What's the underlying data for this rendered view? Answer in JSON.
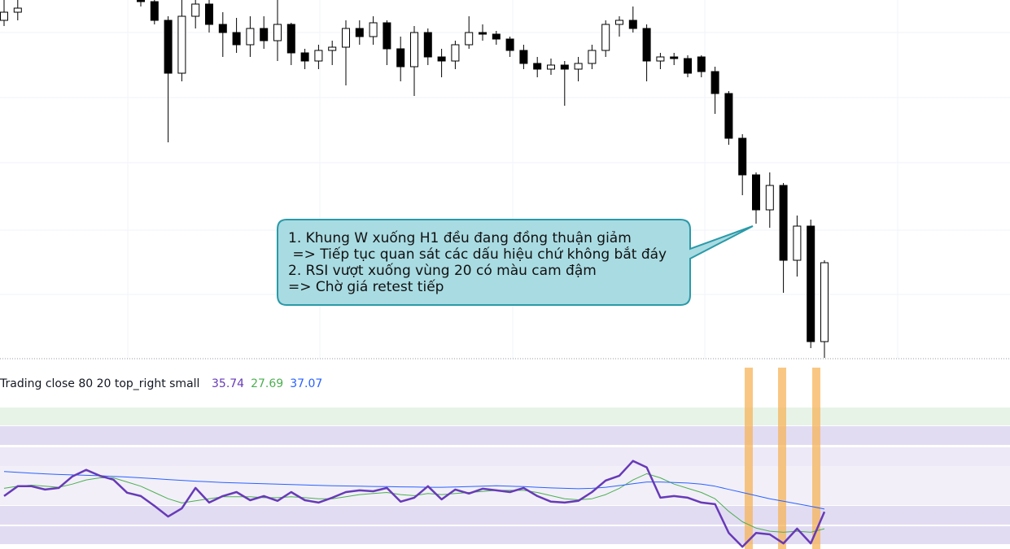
{
  "chart_data": [
    {
      "type": "candlestick",
      "ylim": [
        0,
        440
      ],
      "up_color": "#ffffff",
      "down_color": "#000000",
      "open": [
        415,
        425,
        450,
        460,
        455,
        465,
        470,
        460,
        455,
        462,
        445,
        438,
        415,
        350,
        420,
        435,
        410,
        400,
        385,
        405,
        390,
        410,
        375,
        365,
        378,
        382,
        405,
        395,
        412,
        380,
        358,
        400,
        370,
        365,
        385,
        400,
        398,
        392,
        378,
        362,
        355,
        360,
        355,
        362,
        378,
        410,
        415,
        405,
        365,
        370,
        368,
        370,
        352,
        325,
        270,
        225,
        182,
        212,
        120,
        162,
        20
      ],
      "high": [
        440,
        440,
        465,
        470,
        468,
        475,
        478,
        470,
        468,
        470,
        470,
        450,
        420,
        440,
        445,
        440,
        425,
        418,
        420,
        420,
        440,
        412,
        380,
        385,
        390,
        415,
        415,
        420,
        415,
        395,
        408,
        405,
        380,
        390,
        420,
        410,
        402,
        395,
        385,
        370,
        368,
        365,
        370,
        385,
        415,
        420,
        432,
        410,
        375,
        375,
        372,
        372,
        358,
        328,
        275,
        228,
        228,
        215,
        175,
        170,
        120
      ],
      "low": [
        408,
        415,
        440,
        450,
        448,
        455,
        460,
        450,
        448,
        452,
        432,
        410,
        265,
        340,
        405,
        400,
        370,
        375,
        370,
        380,
        365,
        360,
        355,
        355,
        360,
        335,
        385,
        385,
        360,
        340,
        322,
        360,
        345,
        355,
        380,
        390,
        385,
        370,
        355,
        345,
        348,
        310,
        340,
        355,
        370,
        395,
        400,
        340,
        355,
        360,
        345,
        345,
        300,
        262,
        200,
        165,
        160,
        80,
        100,
        12,
        0
      ],
      "close": [
        425,
        430,
        460,
        455,
        465,
        470,
        460,
        455,
        462,
        448,
        438,
        415,
        350,
        420,
        435,
        410,
        400,
        385,
        405,
        390,
        410,
        375,
        365,
        378,
        382,
        405,
        395,
        412,
        380,
        358,
        400,
        370,
        365,
        385,
        400,
        398,
        392,
        378,
        362,
        355,
        360,
        355,
        362,
        378,
        410,
        415,
        405,
        365,
        370,
        368,
        350,
        352,
        325,
        270,
        225,
        182,
        212,
        120,
        162,
        20,
        117
      ],
      "annotation": [
        "1. Khung W xuống H1 đều đang đồng thuận giảm",
        " => Tiếp tục quan sát các dấu hiệu chứ không bắt đáy",
        "2. RSI vượt xuống vùng 20 có màu cam đậm",
        "=> Chờ giá retest tiếp"
      ]
    },
    {
      "type": "line",
      "legend_text": "Trading close 80 20 top_right small",
      "ylim": [
        18,
        86
      ],
      "series": [
        {
          "color": "#673ab7",
          "values": [
            43.3,
            48.0,
            48.0,
            46.4,
            47.2,
            52.7,
            55.8,
            53.0,
            51.1,
            44.9,
            43.3,
            38.6,
            33.5,
            37.4,
            47.2,
            40.2,
            43.3,
            45.2,
            41.3,
            43.3,
            41.0,
            45.2,
            41.3,
            40.2,
            42.5,
            45.2,
            46.0,
            45.6,
            47.2,
            40.6,
            42.5,
            48.0,
            41.7,
            46.4,
            44.5,
            46.8,
            46.0,
            45.2,
            47.2,
            43.3,
            40.6,
            40.2,
            41.0,
            45.2,
            50.7,
            53.0,
            60.1,
            57.0,
            42.5,
            43.3,
            42.5,
            40.2,
            39.4,
            25.7,
            19.1,
            25.7,
            25.0,
            20.7,
            27.7,
            20.7,
            35.74
          ]
        },
        {
          "color": "#4caf50",
          "values": [
            47,
            48,
            48.5,
            48,
            47.5,
            49,
            51,
            52,
            52,
            50,
            48,
            45,
            42,
            40,
            41,
            42,
            43,
            43,
            43,
            42.5,
            42.5,
            43,
            42.5,
            42,
            42,
            43,
            44,
            44.5,
            45,
            44,
            43.5,
            44.5,
            44,
            44.5,
            45,
            45.5,
            46,
            46,
            46,
            45,
            43.5,
            42,
            41.5,
            42,
            44,
            47,
            51,
            54,
            52,
            49,
            47,
            45,
            42,
            36,
            31,
            28,
            26.5,
            26,
            26.5,
            26,
            27.69
          ]
        },
        {
          "color": "#2962ff",
          "values": [
            55.0,
            54.6,
            54.2,
            53.9,
            53.6,
            53.4,
            53.2,
            53.0,
            52.7,
            52.4,
            52.0,
            51.6,
            51.2,
            50.8,
            50.4,
            50.1,
            49.8,
            49.6,
            49.4,
            49.2,
            49.0,
            48.8,
            48.6,
            48.4,
            48.2,
            48.1,
            48.0,
            47.9,
            47.8,
            47.7,
            47.6,
            47.5,
            47.5,
            47.6,
            47.8,
            48.0,
            48.2,
            48.0,
            47.8,
            47.5,
            47.2,
            47.0,
            46.8,
            47.0,
            47.5,
            48.3,
            49.2,
            50.0,
            50.0,
            49.8,
            49.5,
            49.0,
            48.0,
            46.5,
            45.0,
            43.5,
            42.0,
            40.8,
            39.6,
            38.4,
            37.07
          ]
        }
      ]
    }
  ]
}
